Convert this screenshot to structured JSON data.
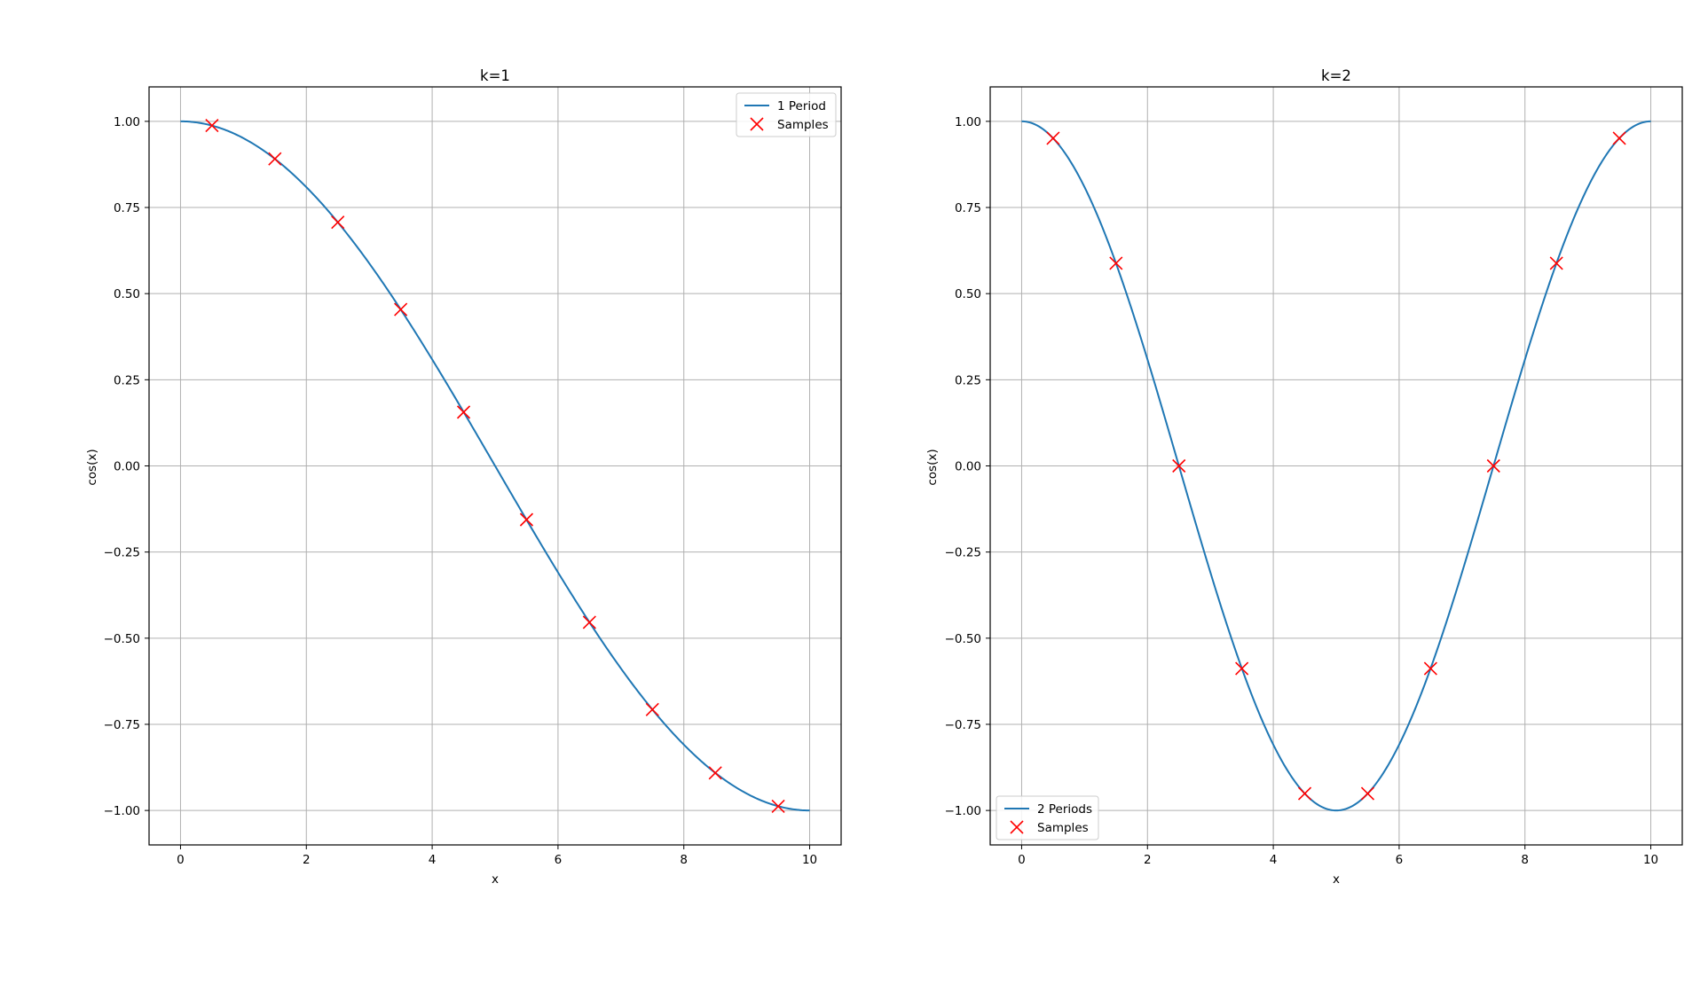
{
  "chart_data": [
    {
      "type": "line",
      "title": "k=1",
      "xlabel": "x",
      "ylabel": "cos(x)",
      "xlim": [
        -0.5,
        10.5
      ],
      "ylim": [
        -1.1,
        1.1
      ],
      "xticks": [
        0,
        2,
        4,
        6,
        8,
        10
      ],
      "xtick_labels": [
        "0",
        "2",
        "4",
        "6",
        "8",
        "10"
      ],
      "yticks": [
        1.0,
        0.75,
        0.5,
        0.25,
        0.0,
        -0.25,
        -0.5,
        -0.75,
        -1.0
      ],
      "ytick_labels": [
        "1.00",
        "0.75",
        "0.50",
        "0.25",
        "0.00",
        "−0.25",
        "−0.50",
        "−0.75",
        "−1.00"
      ],
      "grid": true,
      "legend_position": "top-right",
      "periods": 1,
      "series": [
        {
          "name": "1 Period",
          "kind": "line",
          "color": "#1f77b4",
          "x_range": [
            0,
            10
          ],
          "function": "cos(pi*x/10)"
        },
        {
          "name": "Samples",
          "kind": "marker",
          "marker": "x",
          "color": "#ff0000",
          "x": [
            0.5,
            1.5,
            2.5,
            3.5,
            4.5,
            5.5,
            6.5,
            7.5,
            8.5,
            9.5
          ],
          "y": [
            0.988,
            0.891,
            0.707,
            0.454,
            0.156,
            -0.156,
            -0.454,
            -0.707,
            -0.891,
            -0.988
          ]
        }
      ]
    },
    {
      "type": "line",
      "title": "k=2",
      "xlabel": "x",
      "ylabel": "cos(x)",
      "xlim": [
        -0.5,
        10.5
      ],
      "ylim": [
        -1.1,
        1.1
      ],
      "xticks": [
        0,
        2,
        4,
        6,
        8,
        10
      ],
      "xtick_labels": [
        "0",
        "2",
        "4",
        "6",
        "8",
        "10"
      ],
      "yticks": [
        1.0,
        0.75,
        0.5,
        0.25,
        0.0,
        -0.25,
        -0.5,
        -0.75,
        -1.0
      ],
      "ytick_labels": [
        "1.00",
        "0.75",
        "0.50",
        "0.25",
        "0.00",
        "−0.25",
        "−0.50",
        "−0.75",
        "−1.00"
      ],
      "grid": true,
      "legend_position": "bottom-left",
      "periods": 2,
      "series": [
        {
          "name": "2 Periods",
          "kind": "line",
          "color": "#1f77b4",
          "x_range": [
            0,
            10
          ],
          "function": "cos(2*pi*x/10)"
        },
        {
          "name": "Samples",
          "kind": "marker",
          "marker": "x",
          "color": "#ff0000",
          "x": [
            0.5,
            1.5,
            2.5,
            3.5,
            4.5,
            5.5,
            6.5,
            7.5,
            8.5,
            9.5
          ],
          "y": [
            0.951,
            0.588,
            0.0,
            -0.588,
            -0.951,
            -0.951,
            -0.588,
            0.0,
            0.588,
            0.951
          ]
        }
      ]
    }
  ]
}
